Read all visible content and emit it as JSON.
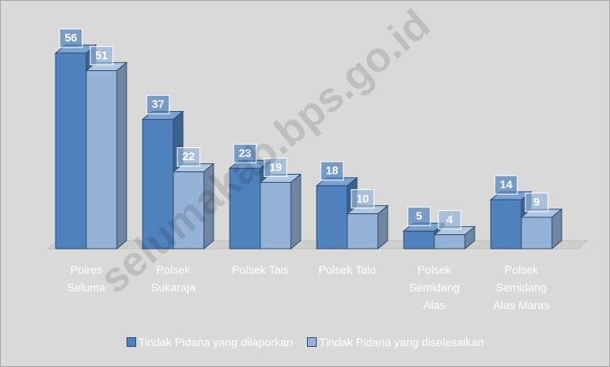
{
  "chart_data": {
    "type": "bar3d",
    "categories": [
      "Polres\nSeluma",
      "Polsek\nSukaraja",
      "Polsek Tais",
      "Polsek Talo",
      "Polsek\nSemidang\nAlas",
      "Polsek\nSemidang\nAlas Maras"
    ],
    "series": [
      {
        "name": "Tindak Pidana yang dilaporkan",
        "color": "#4f81bd",
        "values": [
          56,
          37,
          23,
          18,
          5,
          14
        ]
      },
      {
        "name": "Tindak Pidana yang diselesaikan",
        "color": "#95b3d7",
        "values": [
          51,
          22,
          19,
          10,
          4,
          9
        ]
      }
    ],
    "watermark": "selumakab.bps.go.id"
  }
}
